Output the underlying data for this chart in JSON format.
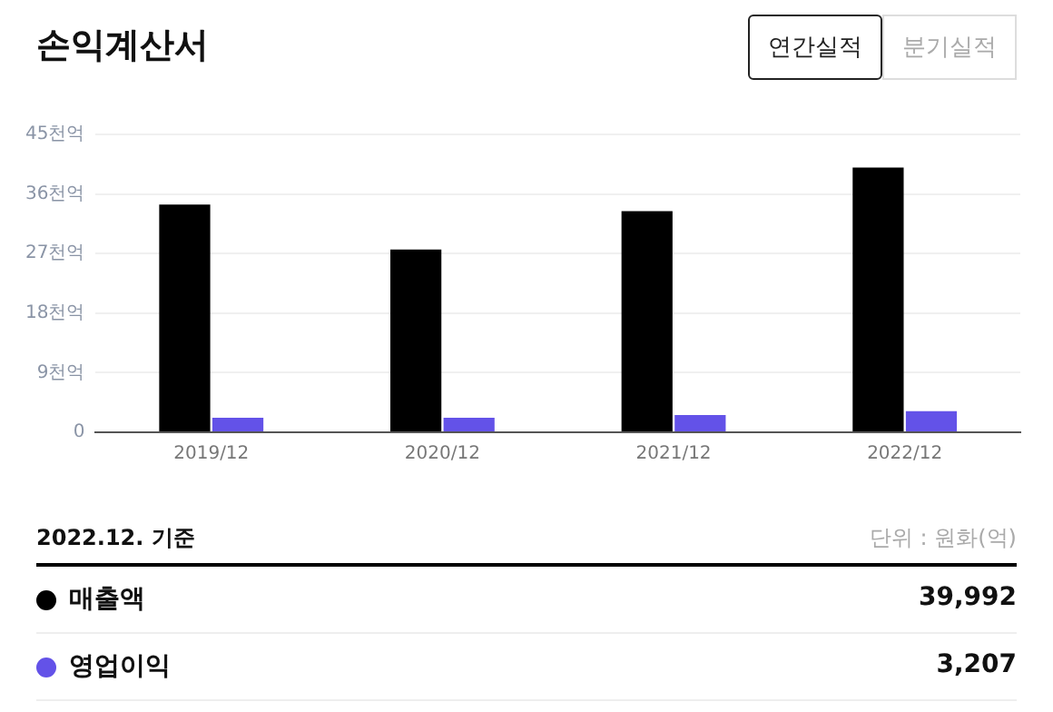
{
  "chart_data": {
    "type": "bar",
    "title": "손익계산서",
    "categories": [
      "2019/12",
      "2020/12",
      "2021/12",
      "2022/12"
    ],
    "series": [
      {
        "name": "매출액",
        "color": "#000000",
        "values": [
          34.4,
          27.6,
          33.4,
          40.0
        ]
      },
      {
        "name": "영업이익",
        "color": "#6352e8",
        "values": [
          2.2,
          2.2,
          2.6,
          3.2
        ]
      }
    ],
    "ylim": [
      0,
      45
    ],
    "yticks": [
      0,
      {
        "value": 9,
        "label": "9천억"
      },
      {
        "value": 18,
        "label": "18천억"
      },
      {
        "value": 27,
        "label": "27천억"
      },
      {
        "value": 36,
        "label": "36천억"
      },
      {
        "value": 45,
        "label": "45천억"
      }
    ],
    "grid": "y",
    "legend": "bottom",
    "annotations": [
      "연간실적",
      "분기실적",
      "2022.12. 기준",
      "단위 : 원화(억)",
      "39,992",
      "3,207"
    ]
  }
}
